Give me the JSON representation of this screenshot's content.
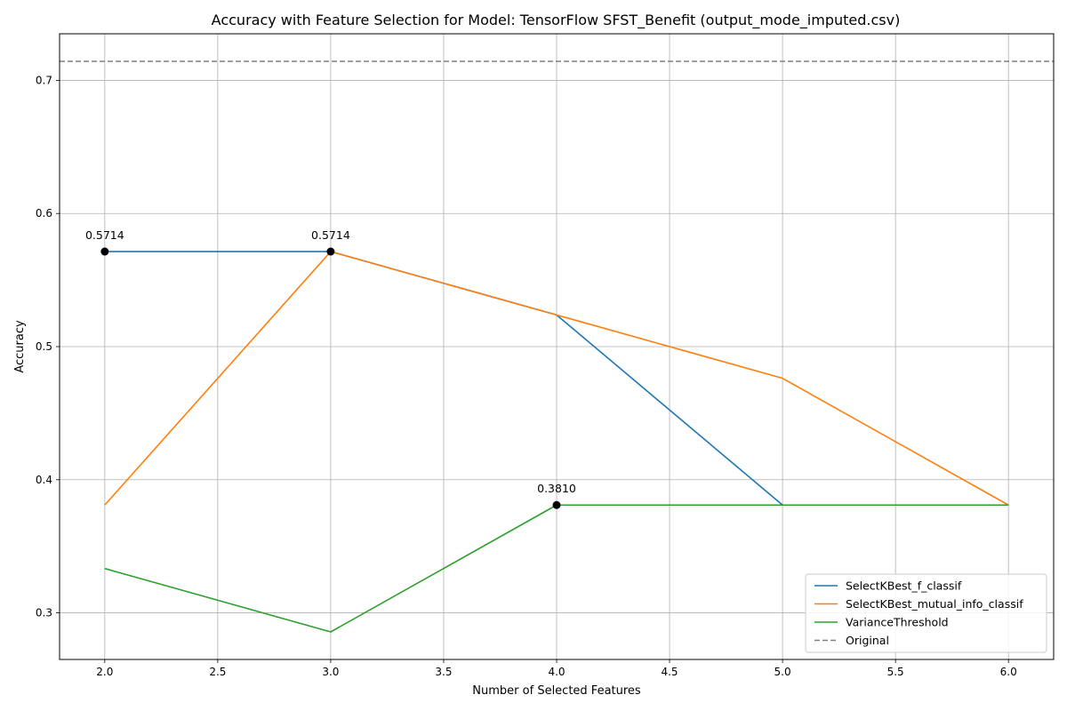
{
  "chart_data": {
    "type": "line",
    "title": "Accuracy with Feature Selection for Model: TensorFlow SFST_Benefit (output_mode_imputed.csv)",
    "xlabel": "Number of Selected Features",
    "ylabel": "Accuracy",
    "xlim": [
      1.8,
      6.2
    ],
    "ylim": [
      0.265,
      0.735
    ],
    "xticks": [
      2.0,
      2.5,
      3.0,
      3.5,
      4.0,
      4.5,
      5.0,
      5.5,
      6.0
    ],
    "xtick_labels": [
      "2.0",
      "2.5",
      "3.0",
      "3.5",
      "4.0",
      "4.5",
      "5.0",
      "5.5",
      "6.0"
    ],
    "yticks": [
      0.3,
      0.4,
      0.5,
      0.6,
      0.7
    ],
    "ytick_labels": [
      "0.3",
      "0.4",
      "0.5",
      "0.6",
      "0.7"
    ],
    "grid": true,
    "legend_position": "bottom-right",
    "x": [
      2,
      3,
      4,
      5,
      6
    ],
    "series": [
      {
        "name": "SelectKBest_f_classif",
        "color": "#1f77b4",
        "style": "solid",
        "values": [
          0.5714,
          0.5714,
          0.5238,
          0.381,
          0.381
        ]
      },
      {
        "name": "SelectKBest_mutual_info_classif",
        "color": "#ff7f0e",
        "style": "solid",
        "values": [
          0.381,
          0.5714,
          0.5238,
          0.4762,
          0.381
        ]
      },
      {
        "name": "VarianceThreshold",
        "color": "#2ca02c",
        "style": "solid",
        "values": [
          0.3333,
          0.2857,
          0.381,
          0.381,
          0.381
        ]
      }
    ],
    "reference_line": {
      "name": "Original",
      "color": "#808080",
      "style": "dashed",
      "value": 0.7143
    },
    "annotations": [
      {
        "x": 2,
        "y": 0.5714,
        "text": "0.5714"
      },
      {
        "x": 3,
        "y": 0.5714,
        "text": "0.5714"
      },
      {
        "x": 4,
        "y": 0.381,
        "text": "0.3810"
      }
    ]
  }
}
